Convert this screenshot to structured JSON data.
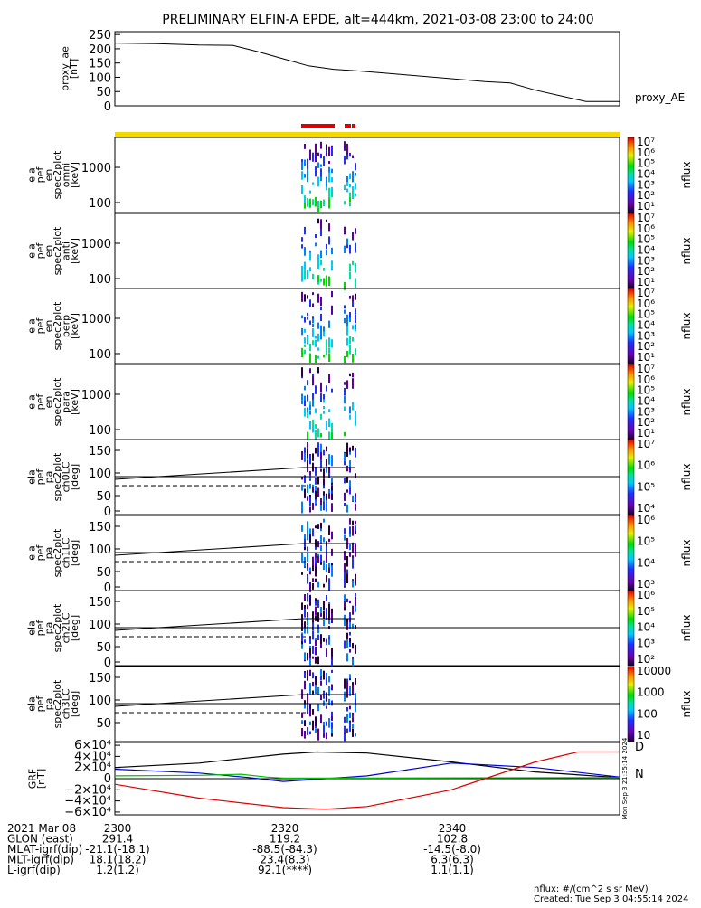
{
  "title": "PRELIMINARY ELFIN-A EPDE, alt=444km, 2021-03-08 23:00 to 24:00",
  "ae_panel": {
    "ylabel_lines": [
      "proxy_ae",
      "[nT]"
    ],
    "yticks": [
      "250",
      "200",
      "150",
      "100",
      "50",
      "0"
    ],
    "tag": "proxy_AE",
    "ylim": [
      0,
      260
    ]
  },
  "spec_panels": [
    {
      "ylabel_lines": [
        "ela",
        "pef",
        "en",
        "spec2plot",
        "omni",
        "[keV]"
      ],
      "yticks": [
        "1000",
        "100"
      ],
      "cb_ticks": [
        "10⁷",
        "10⁶",
        "10⁵",
        "10⁴",
        "10³",
        "10²",
        "10¹"
      ],
      "cb_label": "nflux"
    },
    {
      "ylabel_lines": [
        "ela",
        "pef",
        "en",
        "spec2plot",
        "anti",
        "[keV]"
      ],
      "yticks": [
        "1000",
        "100"
      ],
      "cb_ticks": [
        "10⁷",
        "10⁶",
        "10⁵",
        "10⁴",
        "10³",
        "10²",
        "10¹"
      ],
      "cb_label": "nflux"
    },
    {
      "ylabel_lines": [
        "ela",
        "pef",
        "en",
        "spec2plot",
        "perp",
        "[keV]"
      ],
      "yticks": [
        "1000",
        "100"
      ],
      "cb_ticks": [
        "10⁷",
        "10⁶",
        "10⁵",
        "10⁴",
        "10³",
        "10²",
        "10¹"
      ],
      "cb_label": "nflux"
    },
    {
      "ylabel_lines": [
        "ela",
        "pef",
        "en",
        "spec2plot",
        "para",
        "[keV]"
      ],
      "yticks": [
        "1000",
        "100"
      ],
      "cb_ticks": [
        "10⁷",
        "10⁶",
        "10⁵",
        "10⁴",
        "10³",
        "10²",
        "10¹"
      ],
      "cb_label": "nflux"
    },
    {
      "ylabel_lines": [
        "ela",
        "pef",
        "pa",
        "spec2plot",
        "ch0LC",
        "[deg]"
      ],
      "yticks": [
        "150",
        "100",
        "50",
        "0"
      ],
      "cb_ticks": [
        "10⁷",
        "10⁶",
        "10⁵",
        "10⁴"
      ],
      "cb_label": "nflux"
    },
    {
      "ylabel_lines": [
        "ela",
        "pef",
        "pa",
        "spec2plot",
        "ch1LC",
        "[deg]"
      ],
      "yticks": [
        "150",
        "100",
        "50",
        "0"
      ],
      "cb_ticks": [
        "10⁶",
        "10⁵",
        "10⁴",
        "10³"
      ],
      "cb_label": "nflux"
    },
    {
      "ylabel_lines": [
        "ela",
        "pef",
        "pa",
        "spec2plot",
        "ch2LC",
        "[deg]"
      ],
      "yticks": [
        "150",
        "100",
        "50",
        "0"
      ],
      "cb_ticks": [
        "10⁶",
        "10⁵",
        "10⁴",
        "10³",
        "10²"
      ],
      "cb_label": "nflux"
    },
    {
      "ylabel_lines": [
        "ela",
        "pef",
        "pa",
        "spec2plot",
        "ch3LC",
        "[deg]"
      ],
      "yticks": [
        "150",
        "100",
        "50"
      ],
      "cb_ticks": [
        "10000",
        "1000",
        "100",
        "10"
      ],
      "cb_label": "nflux"
    }
  ],
  "grf_panel": {
    "ylabel_lines": [
      "GRF",
      "[nT]"
    ],
    "yticks": [
      "6×10⁴",
      "4×10⁴",
      "2×10⁴",
      "0",
      "−2×10⁴",
      "−4×10⁴",
      "−6×10⁴"
    ],
    "legend": [
      "D",
      "N"
    ],
    "stamp": "Mon Sep 3 21:35:14 2024"
  },
  "footer": {
    "rows": [
      {
        "label": "2021 Mar 08",
        "values": [
          "2300",
          "2320",
          "2340"
        ]
      },
      {
        "label": "GLON (east)",
        "values": [
          "291.4",
          "119.2",
          "102.8"
        ]
      },
      {
        "label": "MLAT-igrf(dip)",
        "values": [
          "-21.1(-18.1)",
          "-88.5(-84.3)",
          "-14.5(-8.0)"
        ]
      },
      {
        "label": "MLT-igrf(dip)",
        "values": "18.1(18.2)",
        "values2": [
          "23.4(8.3)",
          "6.3(6.3)"
        ]
      },
      {
        "label": "L-igrf(dip)",
        "values": [
          "1.2(1.2)",
          "92.1(****)",
          "1.1(1.1)"
        ]
      }
    ],
    "unit_note": "nflux: #/(cm^2 s sr MeV)",
    "created": "Created: Tue Sep  3 04:55:14 2024"
  },
  "chart_data": [
    {
      "type": "line",
      "title": "PRELIMINARY ELFIN-A EPDE, alt=444km, 2021-03-08 23:00 to 24:00",
      "ylabel": "proxy_ae [nT]",
      "x_unit": "minutes after 23:00 UT",
      "ylim": [
        0,
        260
      ],
      "series": [
        {
          "name": "proxy_AE",
          "x": [
            0,
            5,
            10,
            14,
            17,
            20,
            23,
            26,
            29,
            32,
            36,
            40,
            44,
            47,
            50,
            53,
            56,
            60
          ],
          "values": [
            220,
            218,
            213,
            212,
            190,
            165,
            140,
            128,
            122,
            115,
            105,
            95,
            85,
            80,
            55,
            35,
            15,
            15
          ]
        }
      ]
    },
    {
      "type": "line",
      "ylabel": "GRF [nT]",
      "x_unit": "minutes after 23:00 UT",
      "ylim": [
        -65000,
        65000
      ],
      "series": [
        {
          "x": [
            0,
            10,
            20,
            24,
            30,
            40,
            50,
            60
          ],
          "values": [
            20000,
            28000,
            44000,
            48000,
            46000,
            30000,
            12000,
            2000
          ],
          "color": "#000000"
        },
        {
          "x": [
            0,
            10,
            16,
            20,
            30,
            40,
            50,
            60
          ],
          "values": [
            17000,
            10000,
            2000,
            -5000,
            5000,
            28000,
            20000,
            3000
          ],
          "color": "#0000d8"
        },
        {
          "x": [
            0,
            10,
            15,
            18,
            20,
            24,
            60
          ],
          "values": [
            5000,
            6000,
            8000,
            3000,
            1000,
            1000,
            2000
          ],
          "color": "#00c000"
        },
        {
          "x": [
            0,
            10,
            20,
            25,
            30,
            40,
            50,
            55,
            60
          ],
          "values": [
            -10000,
            -35000,
            -52000,
            -55000,
            -50000,
            -20000,
            30000,
            48000,
            48000
          ],
          "color": "#e00000"
        }
      ]
    }
  ]
}
